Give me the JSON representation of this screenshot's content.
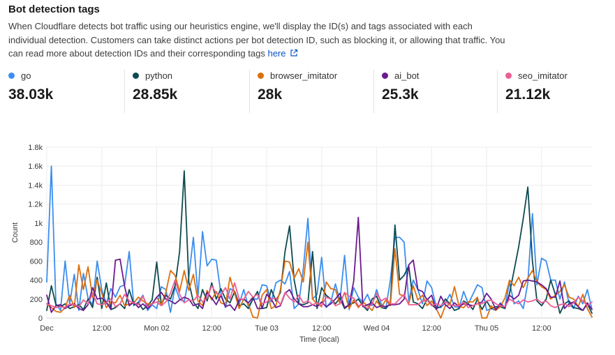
{
  "header": {
    "title": "Bot detection tags",
    "description": "When Cloudflare detects bot traffic using our heuristics engine, we'll display the ID(s) and tags associated with each individual detection. Customers can take distinct actions per bot detection ID, such as blocking it, or allowing that traffic. You can read more about detection IDs and their corresponding tags",
    "link_text": "here",
    "link_icon": "external-link-icon"
  },
  "stats": [
    {
      "name": "go",
      "value": "38.03k",
      "color": "#3b8def"
    },
    {
      "name": "python",
      "value": "28.85k",
      "color": "#0d4a50"
    },
    {
      "name": "browser_imitator",
      "value": "28k",
      "color": "#dd6e0d"
    },
    {
      "name": "ai_bot",
      "value": "25.3k",
      "color": "#6b1a8f"
    },
    {
      "name": "seo_imitator",
      "value": "21.12k",
      "color": "#ea5f95"
    }
  ],
  "chart_data": {
    "type": "line",
    "title": "",
    "xlabel": "Time (local)",
    "ylabel": "Count",
    "ylim": [
      0,
      1800
    ],
    "y_ticks": [
      "0",
      "200",
      "400",
      "600",
      "800",
      "1k",
      "1.2k",
      "1.4k",
      "1.6k",
      "1.8k"
    ],
    "x_ticks": [
      "Dec",
      "12:00",
      "Mon 02",
      "12:00",
      "Tue 03",
      "12:00",
      "Wed 04",
      "12:00",
      "Thu 05",
      "12:00"
    ],
    "x_tick_hours": [
      0,
      12,
      24,
      36,
      48,
      60,
      72,
      84,
      96,
      108
    ],
    "x_range_hours": [
      0,
      119
    ],
    "grid": true,
    "legend": "top",
    "series": [
      {
        "name": "go",
        "color": "#3b8def",
        "values": [
          380,
          1600,
          150,
          80,
          600,
          150,
          460,
          80,
          470,
          210,
          140,
          600,
          300,
          150,
          310,
          220,
          330,
          350,
          700,
          130,
          170,
          240,
          80,
          140,
          100,
          330,
          300,
          60,
          330,
          200,
          170,
          430,
          850,
          230,
          910,
          550,
          620,
          610,
          260,
          110,
          310,
          280,
          150,
          300,
          120,
          200,
          200,
          350,
          340,
          170,
          370,
          400,
          360,
          490,
          100,
          150,
          520,
          1050,
          200,
          250,
          640,
          110,
          170,
          360,
          180,
          660,
          90,
          320,
          220,
          160,
          250,
          130,
          300,
          150,
          100,
          400,
          850,
          850,
          800,
          180,
          400,
          300,
          150,
          390,
          320,
          120,
          110,
          160,
          250,
          120,
          110,
          280,
          150,
          250,
          350,
          320,
          80,
          100,
          80,
          160,
          110,
          380,
          150,
          180,
          100,
          370,
          1100,
          350,
          630,
          600,
          400,
          400,
          200,
          380,
          150,
          100,
          230,
          150,
          300,
          90
        ]
      },
      {
        "name": "python",
        "color": "#0d4a50",
        "values": [
          80,
          340,
          140,
          120,
          150,
          100,
          120,
          140,
          90,
          200,
          110,
          430,
          100,
          370,
          90,
          110,
          150,
          100,
          300,
          140,
          160,
          90,
          130,
          190,
          590,
          140,
          240,
          200,
          340,
          700,
          1550,
          380,
          170,
          100,
          300,
          180,
          370,
          200,
          310,
          200,
          160,
          280,
          130,
          150,
          100,
          200,
          280,
          100,
          110,
          300,
          180,
          270,
          700,
          970,
          400,
          150,
          140,
          160,
          700,
          100,
          320,
          240,
          200,
          150,
          210,
          100,
          140,
          160,
          200,
          130,
          80,
          200,
          230,
          110,
          100,
          160,
          980,
          400,
          450,
          550,
          170,
          150,
          100,
          200,
          140,
          100,
          120,
          200,
          150,
          80,
          100,
          180,
          150,
          90,
          200,
          90,
          180,
          100,
          120,
          120,
          100,
          260,
          500,
          750,
          1050,
          1380,
          600,
          180,
          130,
          200,
          400,
          250,
          50,
          150,
          180,
          110,
          100,
          80,
          150,
          50
        ]
      },
      {
        "name": "browser_imitator",
        "color": "#dd6e0d",
        "values": [
          150,
          110,
          70,
          60,
          110,
          240,
          110,
          560,
          300,
          540,
          220,
          400,
          260,
          110,
          170,
          160,
          240,
          130,
          150,
          160,
          220,
          180,
          150,
          150,
          220,
          140,
          270,
          500,
          450,
          280,
          500,
          290,
          460,
          180,
          130,
          290,
          190,
          280,
          160,
          140,
          430,
          260,
          100,
          200,
          150,
          10,
          0,
          240,
          300,
          100,
          130,
          300,
          600,
          590,
          420,
          520,
          380,
          800,
          200,
          150,
          120,
          380,
          310,
          300,
          150,
          270,
          100,
          190,
          110,
          170,
          130,
          80,
          180,
          110,
          190,
          130,
          730,
          250,
          230,
          150,
          340,
          190,
          240,
          130,
          180,
          100,
          0,
          130,
          140,
          330,
          120,
          110,
          170,
          170,
          220,
          0,
          0,
          130,
          80,
          120,
          210,
          400,
          340,
          430,
          320,
          420,
          500,
          380,
          330,
          300,
          200,
          240,
          280,
          350,
          220,
          200,
          120,
          250,
          100,
          10
        ]
      },
      {
        "name": "ai_bot",
        "color": "#6b1a8f",
        "values": [
          240,
          60,
          130,
          140,
          100,
          130,
          150,
          100,
          80,
          140,
          320,
          200,
          210,
          170,
          90,
          610,
          620,
          330,
          130,
          170,
          110,
          150,
          100,
          150,
          220,
          270,
          200,
          180,
          150,
          190,
          220,
          200,
          130,
          150,
          100,
          270,
          210,
          140,
          240,
          120,
          140,
          80,
          190,
          200,
          160,
          220,
          100,
          100,
          250,
          200,
          110,
          130,
          260,
          300,
          200,
          150,
          120,
          120,
          140,
          120,
          170,
          120,
          150,
          200,
          260,
          110,
          140,
          390,
          1060,
          120,
          140,
          160,
          110,
          130,
          120,
          140,
          140,
          150,
          200,
          560,
          610,
          300,
          280,
          190,
          240,
          90,
          230,
          140,
          100,
          160,
          120,
          150,
          140,
          130,
          150,
          170,
          260,
          200,
          90,
          150,
          110,
          240,
          200,
          240,
          390,
          400,
          390,
          380,
          350,
          310,
          220,
          220,
          390,
          100,
          150,
          170,
          120,
          80,
          160,
          90
        ]
      },
      {
        "name": "seo_imitator",
        "color": "#ea5f95",
        "values": [
          150,
          130,
          110,
          120,
          110,
          150,
          140,
          120,
          190,
          150,
          260,
          150,
          140,
          160,
          200,
          120,
          150,
          250,
          180,
          160,
          140,
          230,
          120,
          150,
          170,
          130,
          170,
          260,
          400,
          250,
          160,
          190,
          180,
          240,
          170,
          210,
          340,
          260,
          240,
          320,
          200,
          370,
          200,
          200,
          280,
          220,
          250,
          150,
          170,
          200,
          210,
          140,
          270,
          210,
          170,
          240,
          160,
          180,
          140,
          160,
          130,
          220,
          200,
          130,
          150,
          270,
          230,
          210,
          130,
          140,
          100,
          150,
          260,
          180,
          210,
          150,
          150,
          200,
          250,
          140,
          140,
          140,
          180,
          190,
          130,
          150,
          130,
          170,
          140,
          130,
          130,
          170,
          110,
          130,
          150,
          150,
          180,
          190,
          150,
          130,
          120,
          200,
          170,
          150,
          190,
          170,
          180,
          200,
          160,
          180,
          130,
          110,
          140,
          150,
          120,
          160,
          220,
          180,
          130,
          170
        ]
      }
    ]
  }
}
